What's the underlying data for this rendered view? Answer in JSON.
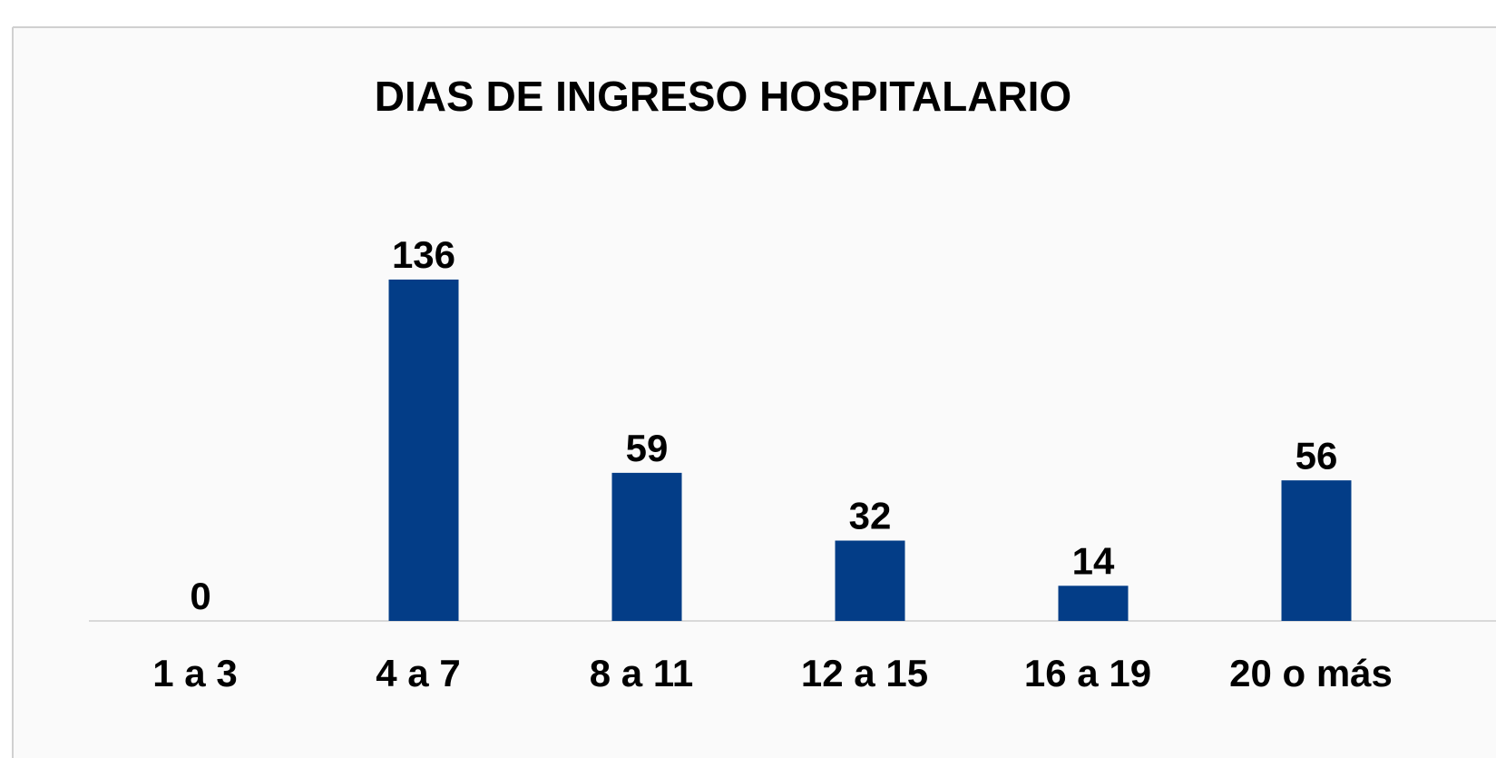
{
  "chart_data": {
    "type": "bar",
    "title": "DIAS DE INGRESO HOSPITALARIO",
    "categories": [
      "1 a 3",
      "4 a 7",
      "8 a 11",
      "12 a 15",
      "16 a 19",
      "20 o más"
    ],
    "values": [
      0,
      136,
      59,
      32,
      14,
      56
    ],
    "color": "#033d87"
  }
}
